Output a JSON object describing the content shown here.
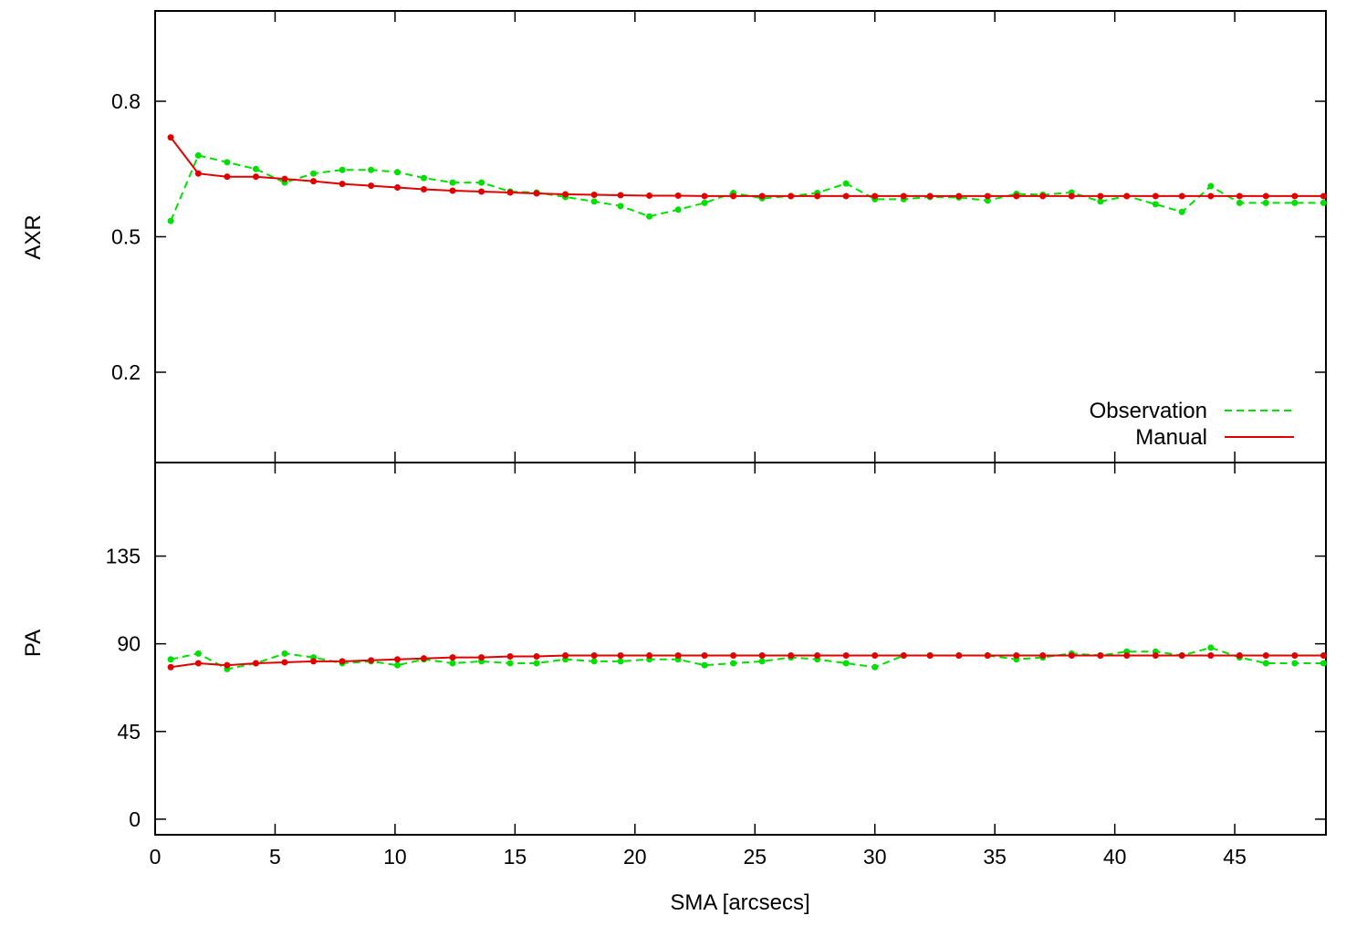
{
  "chart_data": [
    {
      "type": "line",
      "panel": "top",
      "ylabel": "AXR",
      "xlabel": "",
      "xlim": [
        0,
        48.8
      ],
      "ylim": [
        0,
        1.0
      ],
      "yticks": [
        0.2,
        0.5,
        0.8
      ],
      "ytick_labels": [
        "0.2",
        "0.5",
        "0.8"
      ],
      "xtick_labels_shown": false,
      "legend_position": "bottom-right",
      "series": [
        {
          "name": "Observation",
          "style": "dashed",
          "color": "#00e000",
          "x": [
            0.65,
            1.8,
            3.0,
            4.2,
            5.4,
            6.6,
            7.8,
            9.0,
            10.1,
            11.2,
            12.4,
            13.6,
            14.8,
            15.9,
            17.1,
            18.3,
            19.4,
            20.6,
            21.8,
            22.9,
            24.1,
            25.3,
            26.5,
            27.6,
            28.8,
            30.0,
            31.2,
            32.3,
            33.5,
            34.7,
            35.9,
            37.0,
            38.2,
            39.4,
            40.5,
            41.7,
            42.8,
            44.0,
            45.2,
            46.3,
            47.5,
            48.7
          ],
          "y": [
            0.535,
            0.68,
            0.665,
            0.65,
            0.62,
            0.64,
            0.648,
            0.648,
            0.643,
            0.63,
            0.62,
            0.62,
            0.6,
            0.598,
            0.588,
            0.578,
            0.568,
            0.545,
            0.56,
            0.575,
            0.597,
            0.585,
            0.59,
            0.597,
            0.618,
            0.583,
            0.583,
            0.588,
            0.587,
            0.58,
            0.595,
            0.593,
            0.598,
            0.578,
            0.59,
            0.572,
            0.555,
            0.612,
            0.575,
            0.575,
            0.575,
            0.575
          ]
        },
        {
          "name": "Manual",
          "style": "solid",
          "color": "#e00000",
          "x": [
            0.65,
            1.8,
            3.0,
            4.2,
            5.4,
            6.6,
            7.8,
            9.0,
            10.1,
            11.2,
            12.4,
            13.6,
            14.8,
            15.9,
            17.1,
            18.3,
            19.4,
            20.6,
            21.8,
            22.9,
            24.1,
            25.3,
            26.5,
            27.6,
            28.8,
            30.0,
            31.2,
            32.3,
            33.5,
            34.7,
            35.9,
            37.0,
            38.2,
            39.4,
            40.5,
            41.7,
            42.8,
            44.0,
            45.2,
            46.3,
            47.5,
            48.7
          ],
          "y": [
            0.72,
            0.64,
            0.633,
            0.633,
            0.628,
            0.623,
            0.617,
            0.613,
            0.609,
            0.605,
            0.602,
            0.6,
            0.598,
            0.596,
            0.594,
            0.593,
            0.592,
            0.591,
            0.591,
            0.59,
            0.59,
            0.59,
            0.59,
            0.59,
            0.59,
            0.59,
            0.59,
            0.59,
            0.59,
            0.59,
            0.59,
            0.59,
            0.59,
            0.59,
            0.59,
            0.59,
            0.59,
            0.59,
            0.59,
            0.59,
            0.59,
            0.59
          ]
        }
      ]
    },
    {
      "type": "line",
      "panel": "bottom",
      "ylabel": "PA",
      "xlabel": "SMA [arcsecs]",
      "xlim": [
        0,
        48.8
      ],
      "ylim": [
        -8,
        183
      ],
      "yticks": [
        0,
        45,
        90,
        135
      ],
      "ytick_labels": [
        "0",
        "45",
        "90",
        "135"
      ],
      "xticks": [
        0,
        5,
        10,
        15,
        20,
        25,
        30,
        35,
        40,
        45
      ],
      "xtick_labels": [
        "0",
        "5",
        "10",
        "15",
        "20",
        "25",
        "30",
        "35",
        "40",
        "45"
      ],
      "series": [
        {
          "name": "Observation",
          "style": "dashed",
          "color": "#00e000",
          "x": [
            0.65,
            1.8,
            3.0,
            4.2,
            5.4,
            6.6,
            7.8,
            9.0,
            10.1,
            11.2,
            12.4,
            13.6,
            14.8,
            15.9,
            17.1,
            18.3,
            19.4,
            20.6,
            21.8,
            22.9,
            24.1,
            25.3,
            26.5,
            27.6,
            28.8,
            30.0,
            31.2,
            32.3,
            33.5,
            34.7,
            35.9,
            37.0,
            38.2,
            39.4,
            40.5,
            41.7,
            42.8,
            44.0,
            45.2,
            46.3,
            47.5,
            48.7
          ],
          "y": [
            82,
            85,
            77,
            80,
            85,
            83,
            80,
            81,
            79,
            82,
            80,
            81,
            80,
            80,
            82,
            81,
            81,
            82,
            82,
            79,
            80,
            81,
            83,
            82,
            80,
            78,
            84,
            84,
            84,
            84,
            82,
            83,
            85,
            84,
            86,
            86,
            84,
            88,
            83,
            80,
            80,
            80
          ]
        },
        {
          "name": "Manual",
          "style": "solid",
          "color": "#e00000",
          "x": [
            0.65,
            1.8,
            3.0,
            4.2,
            5.4,
            6.6,
            7.8,
            9.0,
            10.1,
            11.2,
            12.4,
            13.6,
            14.8,
            15.9,
            17.1,
            18.3,
            19.4,
            20.6,
            21.8,
            22.9,
            24.1,
            25.3,
            26.5,
            27.6,
            28.8,
            30.0,
            31.2,
            32.3,
            33.5,
            34.7,
            35.9,
            37.0,
            38.2,
            39.4,
            40.5,
            41.7,
            42.8,
            44.0,
            45.2,
            46.3,
            47.5,
            48.7
          ],
          "y": [
            78,
            80,
            79,
            80,
            80.5,
            81,
            81,
            81.5,
            82,
            82.5,
            83,
            83,
            83.5,
            83.5,
            84,
            84,
            84,
            84,
            84,
            84,
            84,
            84,
            84,
            84,
            84,
            84,
            84,
            84,
            84,
            84,
            84,
            84,
            84,
            84,
            84,
            84,
            84,
            84,
            84,
            84,
            84,
            84
          ]
        }
      ]
    }
  ]
}
